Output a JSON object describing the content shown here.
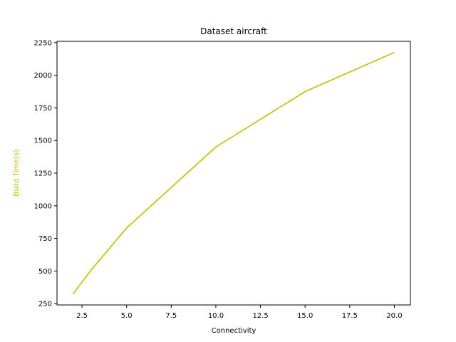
{
  "chart_data": {
    "type": "line",
    "title": "Dataset aircraft",
    "xlabel": "Connectivity",
    "ylabel": "Build Time(s)",
    "xlim": [
      1.1,
      20.9
    ],
    "ylim": [
      240,
      2260
    ],
    "xticks": [
      2.5,
      5.0,
      7.5,
      10.0,
      12.5,
      15.0,
      17.5,
      20.0
    ],
    "xtick_labels": [
      "2.5",
      "5.0",
      "7.5",
      "10.0",
      "12.5",
      "15.0",
      "17.5",
      "20.0"
    ],
    "yticks": [
      250,
      500,
      750,
      1000,
      1250,
      1500,
      1750,
      2000,
      2250
    ],
    "ytick_labels": [
      "250",
      "500",
      "750",
      "1000",
      "1250",
      "1500",
      "1750",
      "2000",
      "2250"
    ],
    "grid": false,
    "series": [
      {
        "color": "#bfbf00",
        "x": [
          2,
          3,
          5,
          10,
          15,
          20
        ],
        "y": [
          325,
          505,
          830,
          1450,
          1875,
          2175
        ]
      }
    ],
    "colors": {
      "series": "#bfbf00",
      "axis": "#000000",
      "ylabel": "#bfbf00"
    }
  }
}
